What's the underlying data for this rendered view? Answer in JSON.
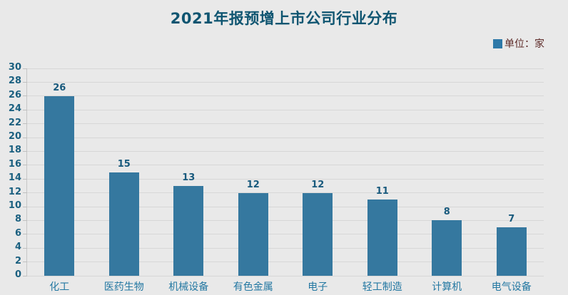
{
  "title": "2021年报预增上市公司行业分布",
  "legend": {
    "label": "单位：家",
    "swatch_color": "#2e79a8"
  },
  "colors": {
    "background": "#e9e9e9",
    "bar": "#35789f",
    "title_text": "#0f5571",
    "axis_label_text": "#1b6080",
    "value_label_text": "#195a7d",
    "category_label_text": "#2478a2",
    "legend_text": "#5d2a28",
    "gridline": "#d7d7d7"
  },
  "chart_data": {
    "type": "bar",
    "title": "2021年报预增上市公司行业分布",
    "categories": [
      "化工",
      "医药生物",
      "机械设备",
      "有色金属",
      "电子",
      "轻工制造",
      "计算机",
      "电气设备"
    ],
    "values": [
      26,
      15,
      13,
      12,
      12,
      11,
      8,
      7
    ],
    "data_labels_shown": true,
    "xlabel": "",
    "ylabel": "",
    "ylim": [
      0,
      30
    ],
    "ytick_step": 2,
    "yticks": [
      0,
      2,
      4,
      6,
      8,
      10,
      12,
      14,
      16,
      18,
      20,
      22,
      24,
      26,
      28,
      30
    ],
    "legend_entries": [
      "单位：家"
    ],
    "legend_position": "top-right",
    "grid": true
  }
}
